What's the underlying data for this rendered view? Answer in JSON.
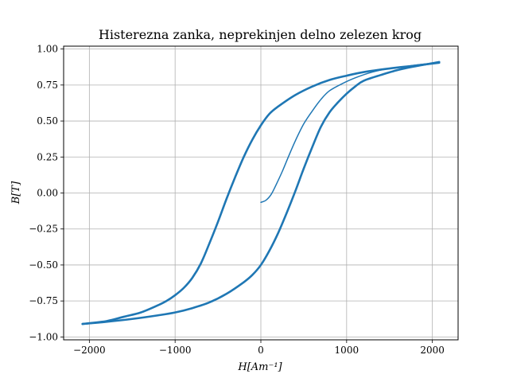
{
  "chart_data": {
    "type": "line",
    "title": "Histerezna zanka, neprekinjen delno zelezen krog",
    "xlabel": "H[Am⁻¹]",
    "ylabel": "B[T]",
    "xlim": [
      -2300,
      2300
    ],
    "ylim": [
      -1.02,
      1.02
    ],
    "grid": true,
    "x_ticks": [
      {
        "value": -2000,
        "label": "−2000"
      },
      {
        "value": -1000,
        "label": "−1000"
      },
      {
        "value": 0,
        "label": "0"
      },
      {
        "value": 1000,
        "label": "1000"
      },
      {
        "value": 2000,
        "label": "2000"
      }
    ],
    "y_ticks": [
      {
        "value": -1.0,
        "label": "−1.00"
      },
      {
        "value": -0.75,
        "label": "−0.75"
      },
      {
        "value": -0.5,
        "label": "−0.50"
      },
      {
        "value": -0.25,
        "label": "−0.25"
      },
      {
        "value": 0.0,
        "label": "0.00"
      },
      {
        "value": 0.25,
        "label": "0.25"
      },
      {
        "value": 0.5,
        "label": "0.50"
      },
      {
        "value": 0.75,
        "label": "0.75"
      },
      {
        "value": 1.0,
        "label": "1.00"
      }
    ],
    "series": [
      {
        "color": "#1f77b4",
        "segments": [
          {
            "part": "initial-magnetization",
            "width": 1.5,
            "x": [
              0,
              60,
              120,
              180,
              250,
              320,
              400,
              500,
              600,
              700,
              800,
              950,
              1100,
              1300,
              1500,
              1700,
              1900,
              2080
            ],
            "y": [
              -0.065,
              -0.05,
              -0.01,
              0.06,
              0.15,
              0.25,
              0.36,
              0.48,
              0.57,
              0.65,
              0.71,
              0.76,
              0.8,
              0.84,
              0.865,
              0.88,
              0.895,
              0.905
            ]
          },
          {
            "part": "upper-branch",
            "width": 2.6,
            "x": [
              2080,
              1800,
              1500,
              1200,
              1000,
              800,
              600,
              400,
              200,
              100,
              0,
              -100,
              -200,
              -300,
              -400,
              -500,
              -600,
              -700,
              -800,
              -900,
              -1000,
              -1100,
              -1200,
              -1400,
              -1600,
              -1800,
              -2080
            ],
            "y": [
              0.905,
              0.885,
              0.865,
              0.84,
              0.815,
              0.785,
              0.74,
              0.68,
              0.6,
              0.55,
              0.47,
              0.37,
              0.25,
              0.11,
              -0.04,
              -0.2,
              -0.35,
              -0.49,
              -0.59,
              -0.66,
              -0.71,
              -0.75,
              -0.78,
              -0.83,
              -0.86,
              -0.89,
              -0.91
            ]
          },
          {
            "part": "lower-branch",
            "width": 2.6,
            "x": [
              -2080,
              -1800,
              -1500,
              -1200,
              -1000,
              -800,
              -600,
              -400,
              -200,
              -100,
              0,
              100,
              200,
              300,
              400,
              500,
              600,
              700,
              800,
              900,
              1000,
              1100,
              1200,
              1400,
              1600,
              1800,
              2080
            ],
            "y": [
              -0.91,
              -0.895,
              -0.875,
              -0.85,
              -0.83,
              -0.8,
              -0.76,
              -0.7,
              -0.62,
              -0.57,
              -0.5,
              -0.4,
              -0.28,
              -0.14,
              0.01,
              0.17,
              0.32,
              0.46,
              0.56,
              0.63,
              0.69,
              0.74,
              0.78,
              0.82,
              0.855,
              0.88,
              0.91
            ]
          }
        ]
      }
    ]
  }
}
